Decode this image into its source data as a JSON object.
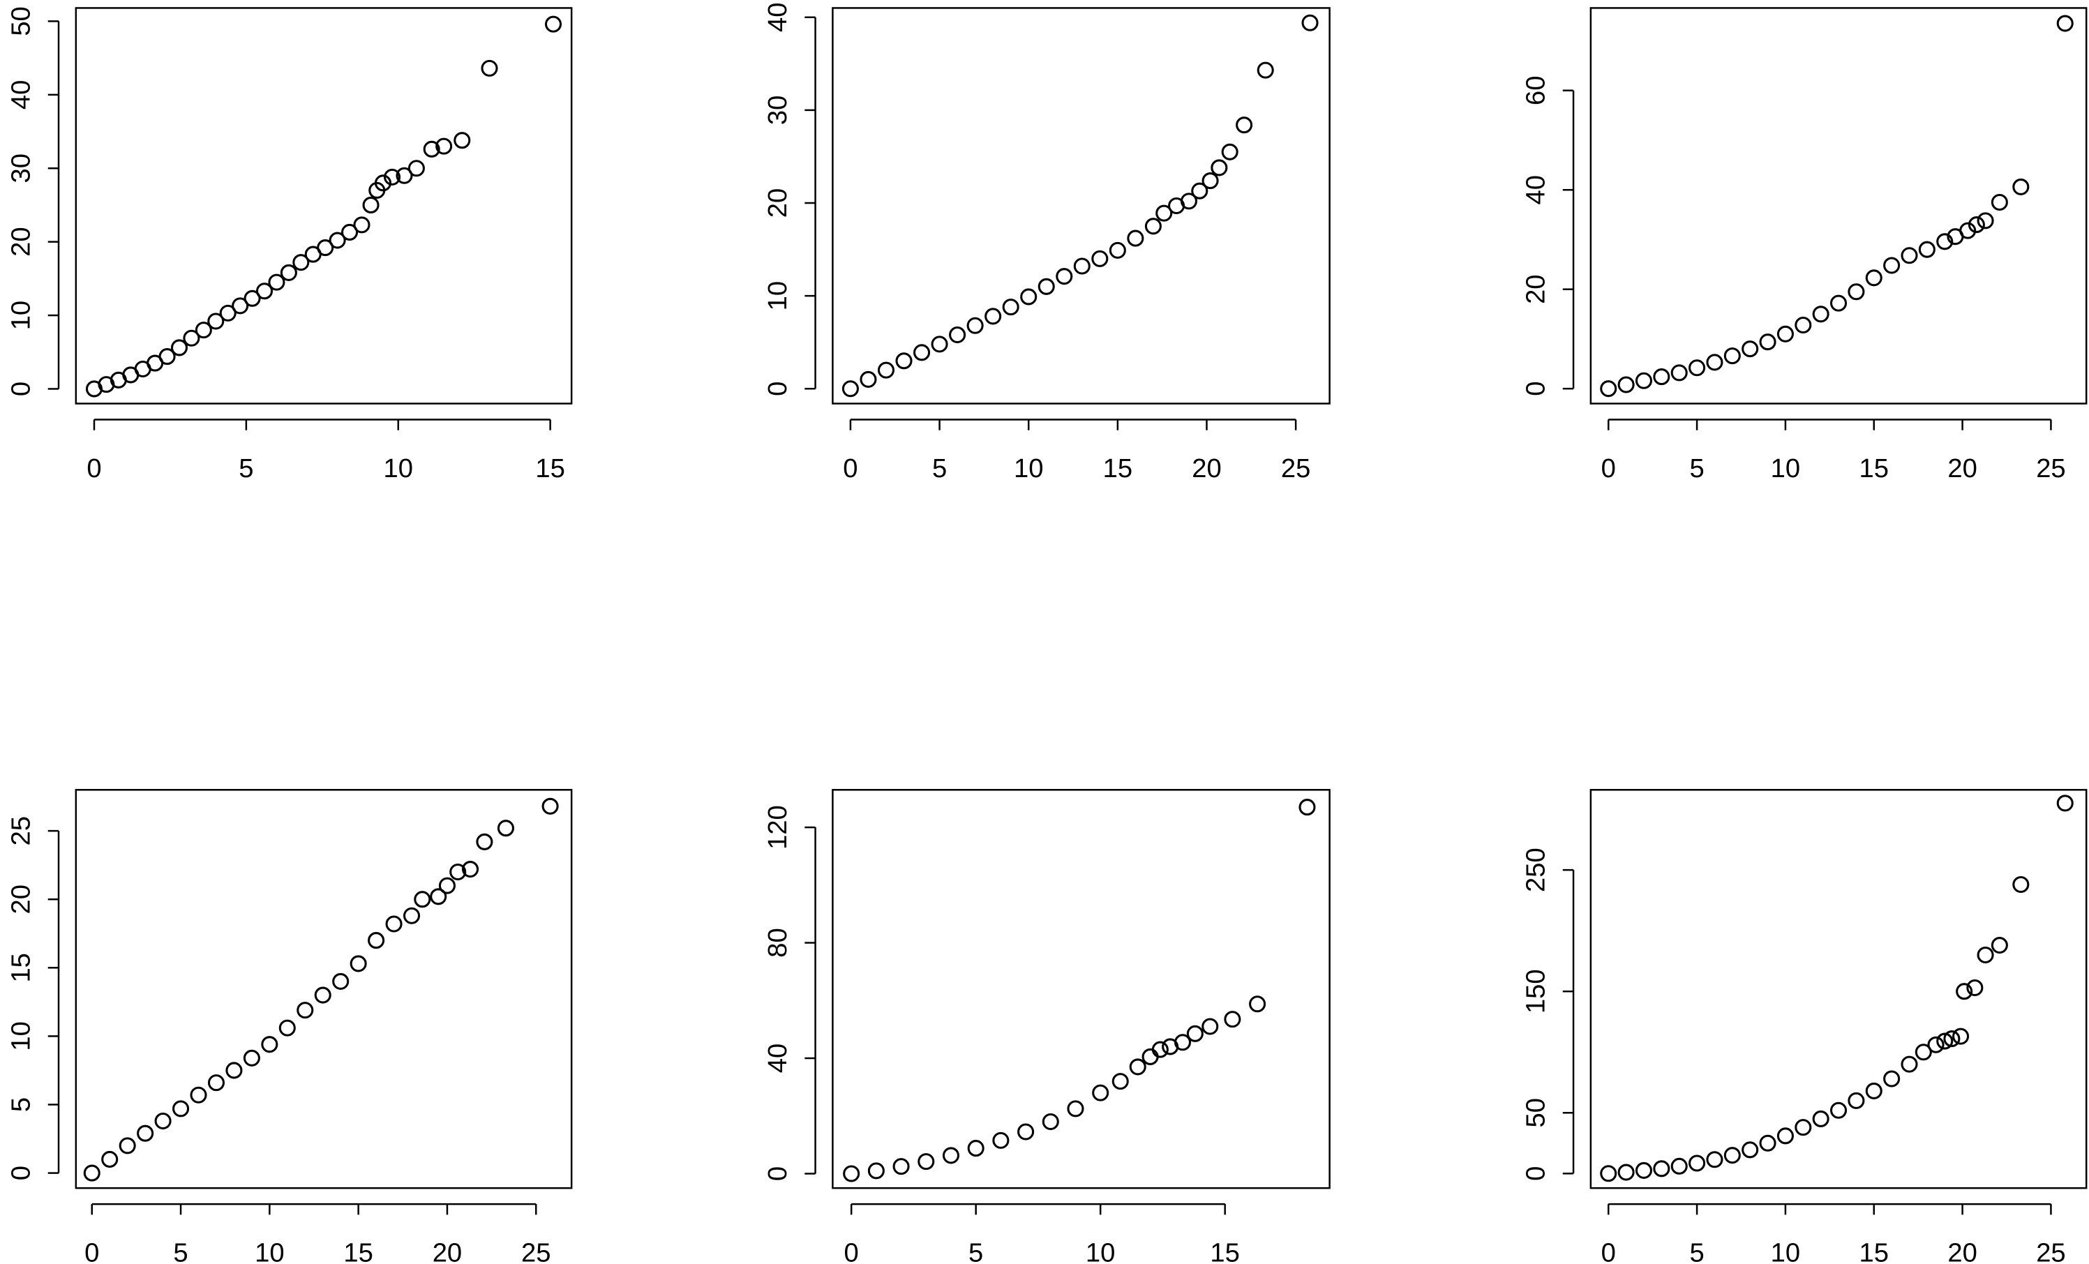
{
  "chart_data": [
    {
      "type": "scatter",
      "xlim": [
        -0.6,
        15.7
      ],
      "ylim": [
        -2,
        51.8
      ],
      "xticks": [
        0,
        5,
        10,
        15
      ],
      "yticks": [
        0,
        10,
        20,
        30,
        40,
        50
      ],
      "color": "#000000",
      "x": [
        0,
        0.4,
        0.8,
        1.2,
        1.6,
        2,
        2.4,
        2.8,
        3.2,
        3.6,
        4,
        4.4,
        4.8,
        5.2,
        5.6,
        6,
        6.4,
        6.8,
        7.2,
        7.6,
        8,
        8.4,
        8.8,
        9.1,
        9.3,
        9.5,
        9.8,
        10.2,
        10.6,
        11.1,
        11.5,
        12.1,
        13,
        15.1
      ],
      "y": [
        0,
        0.6,
        1.2,
        1.9,
        2.7,
        3.5,
        4.4,
        5.6,
        6.9,
        8,
        9.2,
        10.3,
        11.3,
        12.3,
        13.3,
        14.5,
        15.8,
        17.2,
        18.3,
        19.2,
        20.2,
        21.3,
        22.3,
        25,
        27,
        28,
        28.8,
        29,
        30,
        32.6,
        33,
        33.8,
        43.6,
        49.6
      ]
    },
    {
      "type": "scatter",
      "xlim": [
        -1,
        26.9
      ],
      "ylim": [
        -1.6,
        41
      ],
      "xticks": [
        0,
        5,
        10,
        15,
        20,
        25
      ],
      "yticks": [
        0,
        10,
        20,
        30,
        40
      ],
      "color": "#000000",
      "x": [
        0,
        1,
        2,
        3,
        4,
        5,
        6,
        7,
        8,
        9,
        10,
        11,
        12,
        13,
        14,
        15,
        16,
        17,
        17.6,
        18.3,
        19,
        19.6,
        20.2,
        20.7,
        21.3,
        22.1,
        23.3,
        25.8
      ],
      "y": [
        0,
        1,
        2,
        3,
        3.9,
        4.8,
        5.8,
        6.8,
        7.8,
        8.8,
        9.9,
        11,
        12.1,
        13.2,
        14,
        14.9,
        16.2,
        17.5,
        18.9,
        19.7,
        20.2,
        21.3,
        22.4,
        23.8,
        25.5,
        28.4,
        34.3,
        39.4
      ]
    },
    {
      "type": "scatter",
      "xlim": [
        -1,
        27
      ],
      "ylim": [
        -3,
        76.6
      ],
      "xticks": [
        0,
        5,
        10,
        15,
        20,
        25
      ],
      "yticks": [
        0,
        20,
        40,
        60
      ],
      "color": "#000000",
      "x": [
        0,
        1,
        2,
        3,
        4,
        5,
        6,
        7,
        8,
        9,
        10,
        11,
        12,
        13,
        14,
        15,
        16,
        17,
        18,
        19,
        19.6,
        20.3,
        20.8,
        21.3,
        22.1,
        23.3,
        25.8
      ],
      "y": [
        0,
        0.8,
        1.6,
        2.4,
        3.2,
        4.2,
        5.3,
        6.6,
        8,
        9.4,
        11,
        12.8,
        15,
        17.2,
        19.5,
        22.3,
        24.8,
        26.8,
        28,
        29.6,
        30.6,
        31.8,
        33,
        33.8,
        37.5,
        40.6,
        73.5
      ]
    },
    {
      "type": "scatter",
      "xlim": [
        -0.9,
        27
      ],
      "ylim": [
        -1.1,
        28
      ],
      "xticks": [
        0,
        5,
        10,
        15,
        20,
        25
      ],
      "yticks": [
        0,
        5,
        10,
        15,
        20,
        25
      ],
      "color": "#000000",
      "x": [
        0,
        1,
        2,
        3,
        4,
        5,
        6,
        7,
        8,
        9,
        10,
        11,
        12,
        13,
        14,
        15,
        16,
        17,
        18,
        18.6,
        19.5,
        20,
        20.6,
        21.3,
        22.1,
        23.3,
        25.8
      ],
      "y": [
        0,
        1,
        2,
        2.9,
        3.8,
        4.7,
        5.7,
        6.6,
        7.5,
        8.4,
        9.4,
        10.6,
        11.9,
        13,
        14,
        15.3,
        17,
        18.2,
        18.8,
        20,
        20.2,
        21,
        22,
        22.2,
        24.2,
        25.2,
        26.8
      ]
    },
    {
      "type": "scatter",
      "xlim": [
        -0.75,
        19.2
      ],
      "ylim": [
        -5,
        133
      ],
      "xticks": [
        0,
        5,
        10,
        15
      ],
      "yticks": [
        0,
        40,
        80,
        120
      ],
      "color": "#000000",
      "x": [
        0,
        1,
        2,
        3,
        4,
        5,
        6,
        7,
        8,
        9,
        10,
        10.8,
        11.5,
        12,
        12.4,
        12.8,
        13.3,
        13.8,
        14.4,
        15.3,
        16.3,
        18.3
      ],
      "y": [
        0,
        1,
        2.5,
        4.2,
        6.3,
        8.8,
        11.5,
        14.5,
        18,
        22.5,
        28,
        32,
        37,
        40.5,
        43,
        44,
        45.5,
        48.5,
        51,
        53.5,
        58.8,
        127
      ]
    },
    {
      "type": "scatter",
      "xlim": [
        -1,
        27
      ],
      "ylim": [
        -12,
        316
      ],
      "xticks": [
        0,
        5,
        10,
        15,
        20,
        25
      ],
      "yticks": [
        0,
        50,
        150,
        250
      ],
      "color": "#000000",
      "x": [
        0,
        1,
        2,
        3,
        4,
        5,
        6,
        7,
        8,
        9,
        10,
        11,
        12,
        13,
        14,
        15,
        16,
        17,
        17.8,
        18.5,
        19,
        19.4,
        19.9,
        20.1,
        20.7,
        21.3,
        22.1,
        23.3,
        25.8
      ],
      "y": [
        0,
        1,
        2.5,
        4,
        6,
        8.5,
        11.5,
        15,
        19.5,
        25,
        31,
        38,
        45,
        52,
        60,
        68,
        78,
        90,
        100,
        106,
        109,
        111,
        113,
        150,
        153,
        180,
        188,
        238,
        305
      ]
    }
  ]
}
